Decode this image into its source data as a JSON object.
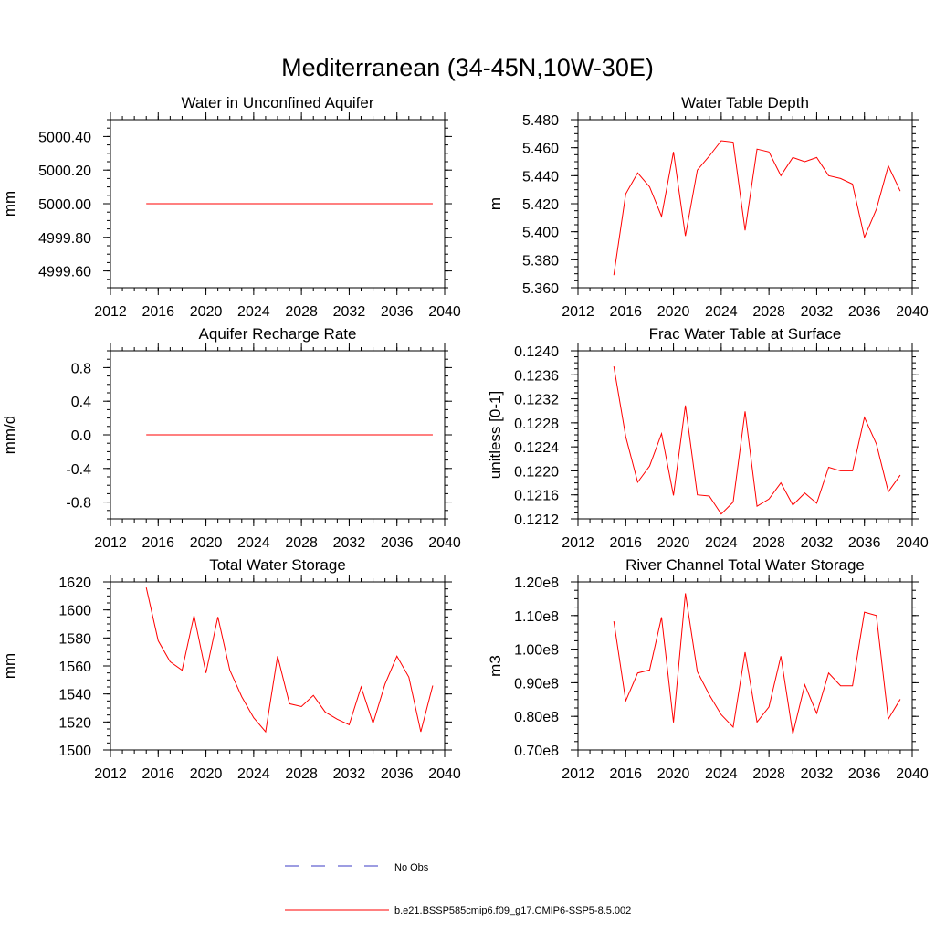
{
  "figure": {
    "title": "Mediterranean (34-45N,10W-30E)"
  },
  "legend": {
    "placement": "bottom-center",
    "entries": [
      {
        "label": "No Obs",
        "style": "dashed",
        "color": "#3b3bc4"
      },
      {
        "label": "b.e21.BSSP585cmip6.f09_g17.CMIP6-SSP5-8.5.002",
        "style": "solid",
        "color": "#ff0000"
      }
    ]
  },
  "chart_data": [
    {
      "type": "line",
      "title": "Water in Unconfined Aquifer",
      "ylabel": "mm",
      "xlim": [
        2012,
        2040
      ],
      "ylim": [
        4999.5,
        5000.5
      ],
      "xticks": [
        2012,
        2016,
        2020,
        2024,
        2028,
        2032,
        2036,
        2040
      ],
      "xtick_labels": [
        "2012",
        "2016",
        "2020",
        "2024",
        "2028",
        "2032",
        "2036",
        "2040"
      ],
      "yticks": [
        4999.6,
        4999.8,
        5000.0,
        5000.2,
        5000.4
      ],
      "ytick_labels": [
        "4999.60",
        "4999.80",
        "5000.00",
        "5000.20",
        "5000.40"
      ],
      "series": [
        {
          "color": "#ff0000",
          "x": [
            2015,
            2016,
            2017,
            2018,
            2019,
            2020,
            2021,
            2022,
            2023,
            2024,
            2025,
            2026,
            2027,
            2028,
            2029,
            2030,
            2031,
            2032,
            2033,
            2034,
            2035,
            2036,
            2037,
            2038,
            2039
          ],
          "y": [
            5000,
            5000,
            5000,
            5000,
            5000,
            5000,
            5000,
            5000,
            5000,
            5000,
            5000,
            5000,
            5000,
            5000,
            5000,
            5000,
            5000,
            5000,
            5000,
            5000,
            5000,
            5000,
            5000,
            5000,
            5000
          ]
        }
      ]
    },
    {
      "type": "line",
      "title": "Water Table Depth",
      "ylabel": "m",
      "xlim": [
        2012,
        2040
      ],
      "ylim": [
        5.36,
        5.48
      ],
      "xticks": [
        2012,
        2016,
        2020,
        2024,
        2028,
        2032,
        2036,
        2040
      ],
      "xtick_labels": [
        "2012",
        "2016",
        "2020",
        "2024",
        "2028",
        "2032",
        "2036",
        "2040"
      ],
      "yticks": [
        5.36,
        5.38,
        5.4,
        5.42,
        5.44,
        5.46,
        5.48
      ],
      "ytick_labels": [
        "5.360",
        "5.380",
        "5.400",
        "5.420",
        "5.440",
        "5.460",
        "5.480"
      ],
      "series": [
        {
          "color": "#ff0000",
          "x": [
            2015,
            2016,
            2017,
            2018,
            2019,
            2020,
            2021,
            2022,
            2023,
            2024,
            2025,
            2026,
            2027,
            2028,
            2029,
            2030,
            2031,
            2032,
            2033,
            2034,
            2035,
            2036,
            2037,
            2038,
            2039
          ],
          "y": [
            5.369,
            5.427,
            5.442,
            5.432,
            5.411,
            5.457,
            5.397,
            5.444,
            5.454,
            5.465,
            5.464,
            5.401,
            5.459,
            5.457,
            5.44,
            5.453,
            5.45,
            5.453,
            5.44,
            5.438,
            5.434,
            5.396,
            5.416,
            5.447,
            5.429
          ]
        }
      ]
    },
    {
      "type": "line",
      "title": "Aquifer Recharge Rate",
      "ylabel": "mm/d",
      "xlim": [
        2012,
        2040
      ],
      "ylim": [
        -1.0,
        1.0
      ],
      "xticks": [
        2012,
        2016,
        2020,
        2024,
        2028,
        2032,
        2036,
        2040
      ],
      "xtick_labels": [
        "2012",
        "2016",
        "2020",
        "2024",
        "2028",
        "2032",
        "2036",
        "2040"
      ],
      "yticks": [
        -0.8,
        -0.4,
        0.0,
        0.4,
        0.8
      ],
      "ytick_labels": [
        "-0.8",
        "-0.4",
        "0.0",
        "0.4",
        "0.8"
      ],
      "series": [
        {
          "color": "#ff0000",
          "x": [
            2015,
            2016,
            2017,
            2018,
            2019,
            2020,
            2021,
            2022,
            2023,
            2024,
            2025,
            2026,
            2027,
            2028,
            2029,
            2030,
            2031,
            2032,
            2033,
            2034,
            2035,
            2036,
            2037,
            2038,
            2039
          ],
          "y": [
            0,
            0,
            0,
            0,
            0,
            0,
            0,
            0,
            0,
            0,
            0,
            0,
            0,
            0,
            0,
            0,
            0,
            0,
            0,
            0,
            0,
            0,
            0,
            0,
            0
          ]
        }
      ]
    },
    {
      "type": "line",
      "title": "Frac Water Table at Surface",
      "ylabel": "unitless [0-1]",
      "xlim": [
        2012,
        2040
      ],
      "ylim": [
        0.1212,
        0.124
      ],
      "xticks": [
        2012,
        2016,
        2020,
        2024,
        2028,
        2032,
        2036,
        2040
      ],
      "xtick_labels": [
        "2012",
        "2016",
        "2020",
        "2024",
        "2028",
        "2032",
        "2036",
        "2040"
      ],
      "yticks": [
        0.1212,
        0.1216,
        0.122,
        0.1224,
        0.1228,
        0.1232,
        0.1236,
        0.124
      ],
      "ytick_labels": [
        "0.1212",
        "0.1216",
        "0.1220",
        "0.1224",
        "0.1228",
        "0.1232",
        "0.1236",
        "0.1240"
      ],
      "series": [
        {
          "color": "#ff0000",
          "x": [
            2015,
            2016,
            2017,
            2018,
            2019,
            2020,
            2021,
            2022,
            2023,
            2024,
            2025,
            2026,
            2027,
            2028,
            2029,
            2030,
            2031,
            2032,
            2033,
            2034,
            2035,
            2036,
            2037,
            2038,
            2039
          ],
          "y": [
            0.12374,
            0.12257,
            0.12181,
            0.12208,
            0.12262,
            0.12159,
            0.12309,
            0.1216,
            0.12158,
            0.12128,
            0.12148,
            0.12299,
            0.12141,
            0.12153,
            0.1218,
            0.12143,
            0.12163,
            0.12146,
            0.12206,
            0.122,
            0.122,
            0.12289,
            0.12245,
            0.12165,
            0.12193
          ]
        }
      ]
    },
    {
      "type": "line",
      "title": "Total Water Storage",
      "ylabel": "mm",
      "xlim": [
        2012,
        2040
      ],
      "ylim": [
        1500,
        1620
      ],
      "xticks": [
        2012,
        2016,
        2020,
        2024,
        2028,
        2032,
        2036,
        2040
      ],
      "xtick_labels": [
        "2012",
        "2016",
        "2020",
        "2024",
        "2028",
        "2032",
        "2036",
        "2040"
      ],
      "yticks": [
        1500,
        1520,
        1540,
        1560,
        1580,
        1600,
        1620
      ],
      "ytick_labels": [
        "1500",
        "1520",
        "1540",
        "1560",
        "1580",
        "1600",
        "1620"
      ],
      "series": [
        {
          "color": "#ff0000",
          "x": [
            2015,
            2016,
            2017,
            2018,
            2019,
            2020,
            2021,
            2022,
            2023,
            2024,
            2025,
            2026,
            2027,
            2028,
            2029,
            2030,
            2031,
            2032,
            2033,
            2034,
            2035,
            2036,
            2037,
            2038,
            2039
          ],
          "y": [
            1616,
            1578,
            1563,
            1557,
            1596,
            1555,
            1595,
            1557,
            1538,
            1523,
            1513,
            1567,
            1533,
            1531,
            1539,
            1527,
            1522,
            1518,
            1545,
            1519,
            1547,
            1567,
            1552,
            1513,
            1546
          ]
        }
      ]
    },
    {
      "type": "line",
      "title": "River Channel Total Water Storage",
      "ylabel": "m3",
      "xlim": [
        2012,
        2040
      ],
      "ylim": [
        70000000,
        120000000
      ],
      "xticks": [
        2012,
        2016,
        2020,
        2024,
        2028,
        2032,
        2036,
        2040
      ],
      "xtick_labels": [
        "2012",
        "2016",
        "2020",
        "2024",
        "2028",
        "2032",
        "2036",
        "2040"
      ],
      "yticks": [
        70000000,
        80000000,
        90000000,
        100000000,
        110000000,
        120000000
      ],
      "ytick_labels": [
        "0.70e8",
        "0.80e8",
        "0.90e8",
        "1.00e8",
        "1.10e8",
        "1.20e8"
      ],
      "series": [
        {
          "color": "#ff0000",
          "x": [
            2015,
            2016,
            2017,
            2018,
            2019,
            2020,
            2021,
            2022,
            2023,
            2024,
            2025,
            2026,
            2027,
            2028,
            2029,
            2030,
            2031,
            2032,
            2033,
            2034,
            2035,
            2036,
            2037,
            2038,
            2039
          ],
          "y": [
            108300000,
            84600000,
            92900000,
            93800000,
            109500000,
            78200000,
            116600000,
            93300000,
            86400000,
            80500000,
            76800000,
            99100000,
            78300000,
            82800000,
            97900000,
            74800000,
            89400000,
            80900000,
            92900000,
            89100000,
            89100000,
            111000000,
            110000000,
            79200000,
            85100000
          ]
        }
      ]
    }
  ]
}
